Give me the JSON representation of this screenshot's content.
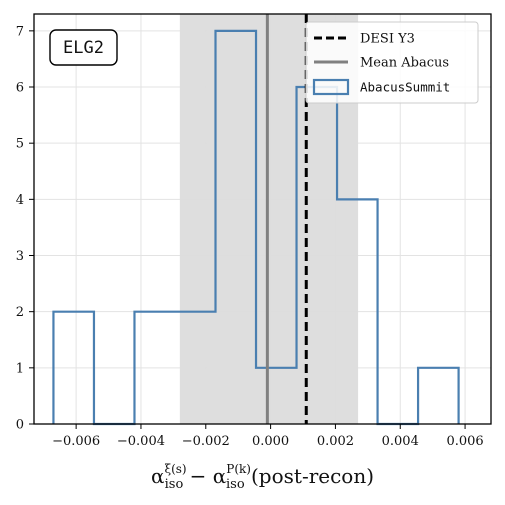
{
  "chart_data": {
    "type": "bar",
    "panel_tag": "ELG2",
    "xlabel": {
      "alpha": "α",
      "sub": "iso",
      "sup1": "ξ(s)",
      "minus": " − ",
      "sup2": "P(k)",
      "suffix": " (post-recon)"
    },
    "xlim": [
      -0.0073,
      0.0068
    ],
    "ylim": [
      0,
      7.3
    ],
    "xticks": [
      {
        "value": -0.006,
        "label": "−0.006"
      },
      {
        "value": -0.004,
        "label": "−0.004"
      },
      {
        "value": -0.002,
        "label": "−0.002"
      },
      {
        "value": 0.0,
        "label": "0.000"
      },
      {
        "value": 0.002,
        "label": "0.002"
      },
      {
        "value": 0.004,
        "label": "0.004"
      },
      {
        "value": 0.006,
        "label": "0.006"
      }
    ],
    "yticks": [
      {
        "value": 0,
        "label": "0"
      },
      {
        "value": 1,
        "label": "1"
      },
      {
        "value": 2,
        "label": "2"
      },
      {
        "value": 3,
        "label": "3"
      },
      {
        "value": 4,
        "label": "4"
      },
      {
        "value": 5,
        "label": "5"
      },
      {
        "value": 6,
        "label": "6"
      },
      {
        "value": 7,
        "label": "7"
      }
    ],
    "grid": true,
    "histogram": {
      "name": "AbacusSummit",
      "color": "#4a7fb0",
      "bin_edges": [
        -0.0067,
        -0.00545,
        -0.0042,
        -0.00295,
        -0.0017,
        -0.00045,
        0.0008,
        0.00205,
        0.0033,
        0.00455,
        0.0058
      ],
      "counts": [
        2,
        0,
        2,
        2,
        7,
        1,
        6,
        4,
        0,
        1
      ]
    },
    "shaded_band": {
      "from": -0.0028,
      "to": 0.0027,
      "color": "#dcdcdc"
    },
    "mean_abacus": {
      "value": -0.0001,
      "name": "Mean Abacus",
      "color": "#808080"
    },
    "desi_y3": {
      "value": 0.0011,
      "name": "DESI Y3",
      "color": "#000000"
    },
    "legend": {
      "placement": "top-right",
      "entries": [
        {
          "label": "DESI Y3",
          "style": "dashed-black"
        },
        {
          "label": "Mean Abacus",
          "style": "solid-gray"
        },
        {
          "label": "AbacusSummit",
          "style": "patch-blue"
        }
      ]
    }
  }
}
